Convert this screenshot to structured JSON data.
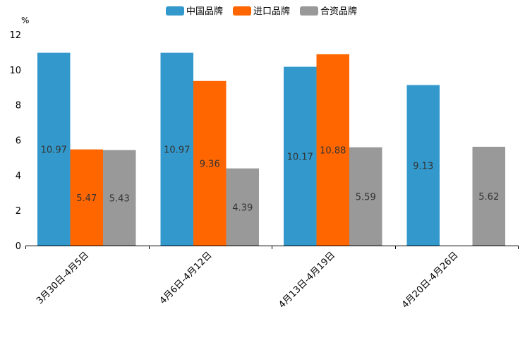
{
  "chart_data": {
    "type": "bar",
    "ylabel": "%",
    "ylim": [
      0,
      12
    ],
    "yticks": [
      "0",
      "2",
      "4",
      "6",
      "8",
      "10",
      "12"
    ],
    "categories": [
      "3月30日-4月5日",
      "4月6日-4月12日",
      "4月13日-4月19日",
      "4月20日-4月26日"
    ],
    "series": [
      {
        "name": "中国品牌",
        "color": "#3399cc",
        "values": [
          10.97,
          10.97,
          10.17,
          9.13
        ],
        "labels": [
          "10.97",
          "10.97",
          "10.17",
          "9.13"
        ]
      },
      {
        "name": "进口品牌",
        "color": "#ff6600",
        "values": [
          5.47,
          9.36,
          10.88,
          null
        ],
        "labels": [
          "5.47",
          "9.36",
          "10.88",
          ""
        ]
      },
      {
        "name": "合资品牌",
        "color": "#999999",
        "values": [
          5.43,
          4.39,
          5.59,
          5.62
        ],
        "labels": [
          "5.43",
          "4.39",
          "5.59",
          "5.62"
        ]
      }
    ],
    "legend_position": "top-center",
    "grid": false
  }
}
